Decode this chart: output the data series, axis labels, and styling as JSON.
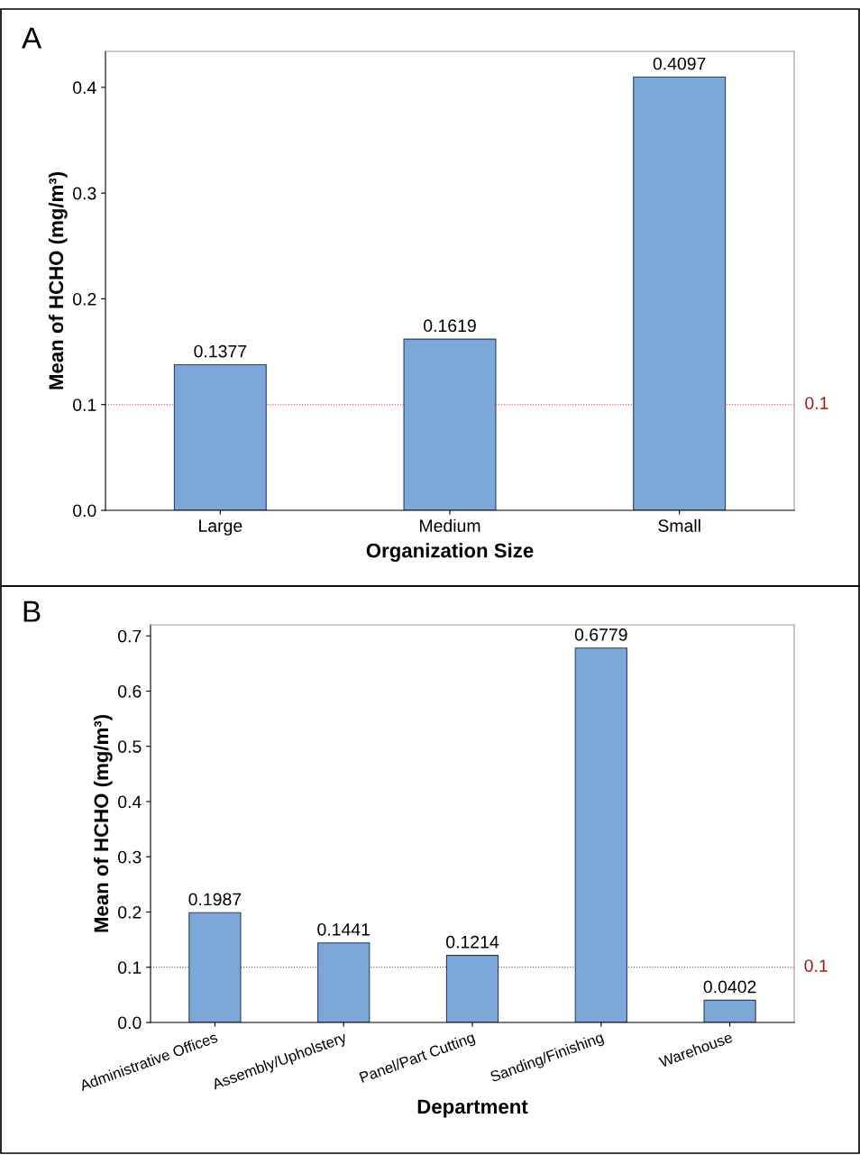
{
  "chart_data": [
    {
      "type": "bar",
      "annotations": [
        "A"
      ],
      "xlabel": "Organization Size",
      "ylabel": "Mean of HCHO (mg/m³)",
      "categories": [
        "Large",
        "Medium",
        "Small"
      ],
      "values": [
        0.1377,
        0.1619,
        0.4097
      ],
      "color": "#7ba7d9",
      "data_labels": true,
      "ylim": [
        0,
        0.434
      ],
      "yticks": [
        {
          "value": 0,
          "label": "0.0"
        },
        0.1,
        0.2,
        0.3,
        0.4
      ],
      "ref_lines": [
        {
          "axis": "y",
          "value": 0.1,
          "label": "0.1",
          "color": "#e03030",
          "line_style": "dotted"
        }
      ]
    },
    {
      "type": "bar",
      "annotations": [
        "B"
      ],
      "xlabel": "Department",
      "ylabel": "Mean of HCHO (mg/m³)",
      "categories": [
        "Administrative Offices",
        "Assembly/Upholstery",
        "Panel/Part Cutting",
        "Sanding/Finishing",
        "Warehouse"
      ],
      "values": [
        0.1987,
        0.1441,
        0.1214,
        0.6779,
        0.0402
      ],
      "color": "#7ba7d9",
      "data_labels": true,
      "ylim": [
        0,
        0.72
      ],
      "yticks": [
        {
          "value": 0,
          "label": "0.0"
        },
        0.1,
        0.2,
        0.3,
        0.4,
        0.5,
        0.6,
        0.7
      ],
      "ref_lines": [
        {
          "axis": "y",
          "value": 0.1,
          "label": "0.1",
          "color": "#404040",
          "line_style": "dotted"
        }
      ]
    }
  ]
}
